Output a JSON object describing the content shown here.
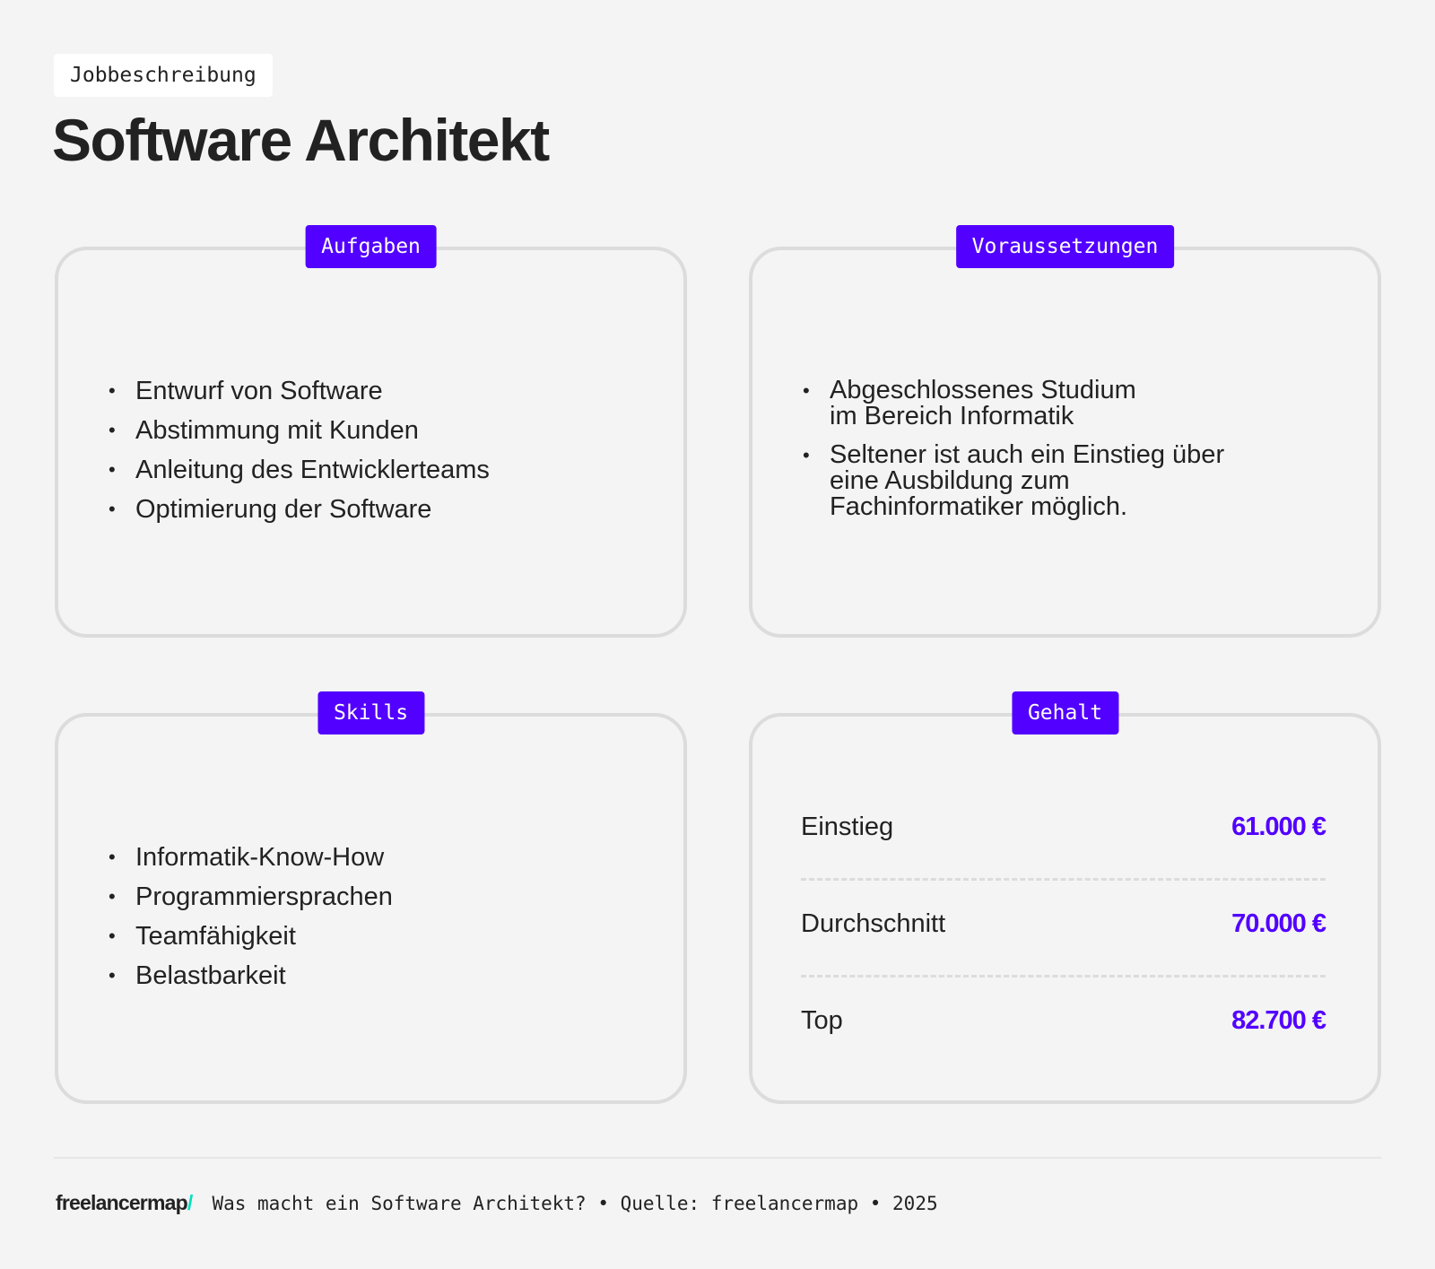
{
  "header": {
    "tag": "Jobbeschreibung",
    "title": "Software Architekt"
  },
  "cards": {
    "aufgaben": {
      "label": "Aufgaben",
      "items": [
        "Entwurf von Software",
        "Abstimmung mit Kunden",
        "Anleitung des Entwicklerteams",
        "Optimierung der Software"
      ]
    },
    "voraussetzungen": {
      "label": "Voraussetzungen",
      "items": [
        "Abgeschlossenes Studium im Bereich Informatik",
        "Seltener ist auch ein Einstieg über eine Ausbildung zum Fachinformatiker möglich."
      ]
    },
    "skills": {
      "label": "Skills",
      "items": [
        "Informatik-Know-How",
        "Programmiersprachen",
        "Teamfähigkeit",
        "Belastbarkeit"
      ]
    },
    "gehalt": {
      "label": "Gehalt",
      "rows": [
        {
          "label": "Einstieg",
          "value": "61.000 €"
        },
        {
          "label": "Durchschnitt",
          "value": "70.000 €"
        },
        {
          "label": "Top",
          "value": "82.700 €"
        }
      ]
    }
  },
  "footer": {
    "logo": "freelancermap",
    "logo_slash": "/",
    "text": "Was macht ein Software Architekt? • Quelle: freelancermap • 2025"
  },
  "colors": {
    "accent": "#5200ff",
    "logo_accent": "#00e0c0",
    "background": "#f4f4f4"
  }
}
